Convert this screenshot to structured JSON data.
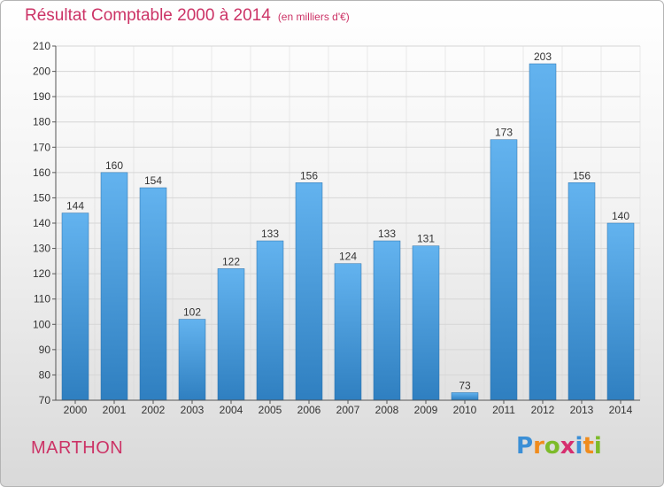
{
  "header": {
    "title": "Résultat Comptable 2000 à 2014",
    "unit": "(en milliers d'€)"
  },
  "footer": {
    "town": "MARTHON",
    "brand_letters": [
      "P",
      "r",
      "o",
      "x",
      "i",
      "t",
      "i"
    ],
    "brand_colors": [
      "#3b8fd6",
      "#f08c1d",
      "#7dbb2a",
      "#d62e6f",
      "#3b8fd6",
      "#f08c1d",
      "#7dbb2a"
    ]
  },
  "colors": {
    "title": "#cc3366",
    "bar_top": "#63b3ef",
    "bar_bottom": "#2f7fc0",
    "grid": "#d6d6d6",
    "axis": "#555555"
  },
  "chart_data": {
    "type": "bar",
    "title": "Résultat Comptable 2000 à 2014",
    "subtitle": "(en milliers d'€)",
    "xlabel": "",
    "ylabel": "",
    "categories": [
      "2000",
      "2001",
      "2002",
      "2003",
      "2004",
      "2005",
      "2006",
      "2007",
      "2008",
      "2009",
      "2010",
      "2011",
      "2012",
      "2013",
      "2014"
    ],
    "values": [
      144,
      160,
      154,
      102,
      122,
      133,
      156,
      124,
      133,
      131,
      73,
      173,
      203,
      156,
      140
    ],
    "ylim": [
      70,
      210
    ],
    "yticks": [
      70,
      80,
      90,
      100,
      110,
      120,
      130,
      140,
      150,
      160,
      170,
      180,
      190,
      200,
      210
    ],
    "grid": true,
    "legend": "none"
  }
}
